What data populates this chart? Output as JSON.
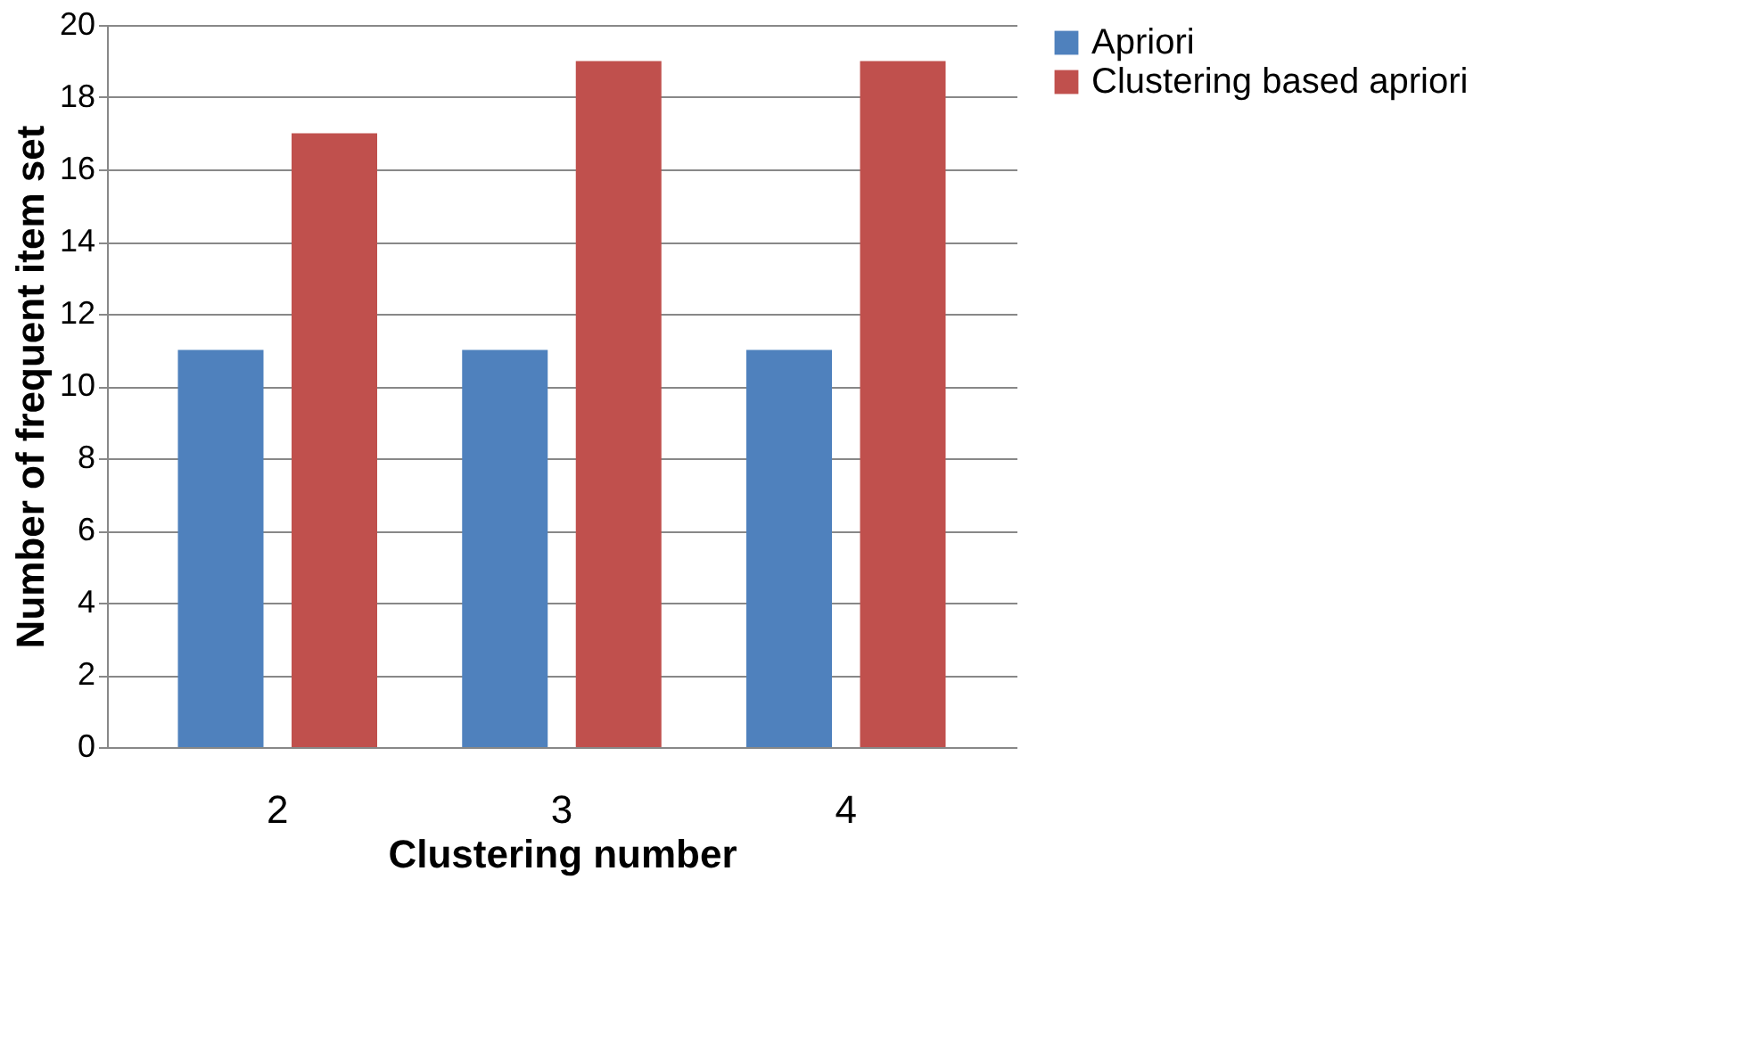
{
  "chart_data": {
    "type": "bar",
    "xlabel": "Clustering number",
    "ylabel": "Number of frequent item set",
    "categories": [
      "2",
      "3",
      "4"
    ],
    "series": [
      {
        "name": "Apriori",
        "color": "#4f81bd",
        "values": [
          11,
          11,
          11
        ]
      },
      {
        "name": "Clustering based apriori",
        "color": "#c0504d",
        "values": [
          17,
          19,
          19
        ]
      }
    ],
    "ylim": [
      0,
      20
    ],
    "yticks": [
      0,
      2,
      4,
      6,
      8,
      10,
      12,
      14,
      16,
      18,
      20
    ],
    "grid": "y",
    "legend": "right"
  }
}
